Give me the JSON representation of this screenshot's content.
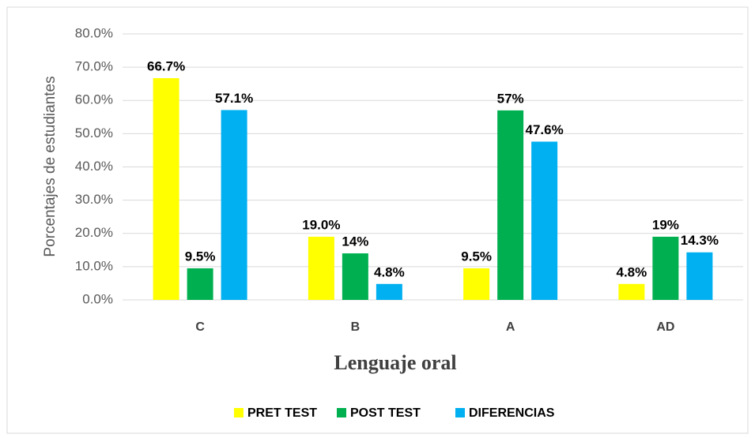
{
  "chart_data": {
    "type": "bar",
    "x_label": "Lenguaje oral",
    "y_label": "Porcentajes de estudiantes",
    "categories": [
      "C",
      "B",
      "A",
      "AD"
    ],
    "series": [
      {
        "name": "PRET TEST",
        "color": "#ffff00",
        "values": [
          66.7,
          19.0,
          9.5,
          4.8
        ],
        "value_labels": [
          "66.7%",
          "19.0%",
          "9.5%",
          "4.8%"
        ]
      },
      {
        "name": "POST TEST",
        "color": "#00b050",
        "values": [
          9.5,
          14,
          57,
          19
        ],
        "value_labels": [
          "9.5%",
          "14%",
          "57%",
          "19%"
        ]
      },
      {
        "name": "DIFERENCIAS",
        "color": "#00b0f0",
        "values": [
          57.1,
          4.8,
          47.6,
          14.3
        ],
        "value_labels": [
          "57.1%",
          "4.8%",
          "47.6%",
          "14.3%"
        ]
      }
    ],
    "ylim": [
      0,
      80
    ],
    "yticks": [
      {
        "value": 0,
        "label": "0.0%"
      },
      {
        "value": 10,
        "label": "10.0%"
      },
      {
        "value": 20,
        "label": "20.0%"
      },
      {
        "value": 30,
        "label": "30.0%"
      },
      {
        "value": 40,
        "label": "40.0%"
      },
      {
        "value": 50,
        "label": "50.0%"
      },
      {
        "value": 60,
        "label": "60.0%"
      },
      {
        "value": 70,
        "label": "70.0%"
      },
      {
        "value": 80,
        "label": "80.0%"
      }
    ],
    "grid": true,
    "legend": "bottom"
  }
}
